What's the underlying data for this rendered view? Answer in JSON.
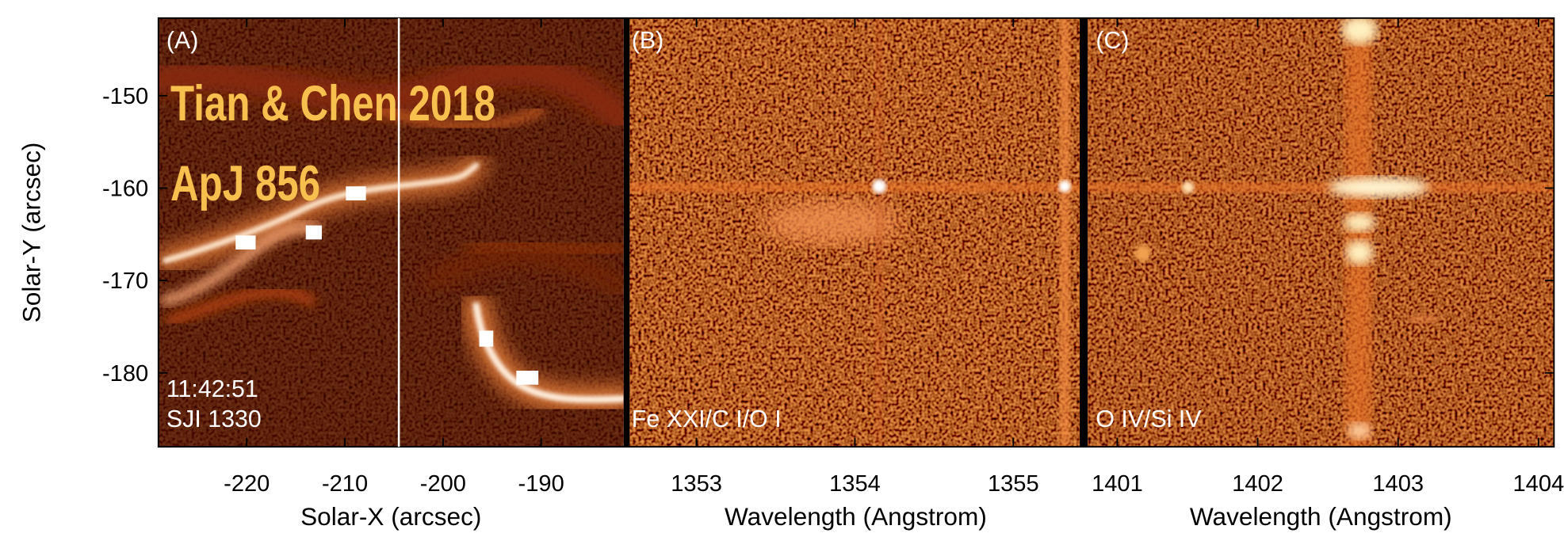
{
  "chart_data": [
    {
      "type": "image",
      "panel_label": "(A)",
      "overlay": [
        "Tian & Chen 2018",
        "ApJ 856"
      ],
      "annotations": [
        "11:42:51",
        "SJI 1330"
      ],
      "xlabel": "Solar-X (arcsec)",
      "ylabel": "Solar-Y (arcsec)",
      "xlim": [
        -229,
        -181.6
      ],
      "xticks": [
        -220,
        -210,
        -200,
        -190
      ],
      "ylim": [
        -188,
        -141.6
      ],
      "yticks": [
        -150,
        -160,
        -170,
        -180
      ],
      "slit_x": -204.5
    },
    {
      "type": "image",
      "panel_label": "(B)",
      "annotations": [
        "Fe XXI/C I/O I"
      ],
      "xlabel": "Wavelength (Angstrom)",
      "xlim": [
        1352.54,
        1355.47
      ],
      "xticks": [
        1353,
        1354,
        1355
      ]
    },
    {
      "type": "image",
      "panel_label": "(C)",
      "annotations": [
        "O IV/Si IV"
      ],
      "xlabel": "Wavelength (Angstrom)",
      "xlim": [
        1400.79,
        1404.11
      ],
      "xticks": [
        1401,
        1402,
        1403,
        1404
      ]
    }
  ]
}
